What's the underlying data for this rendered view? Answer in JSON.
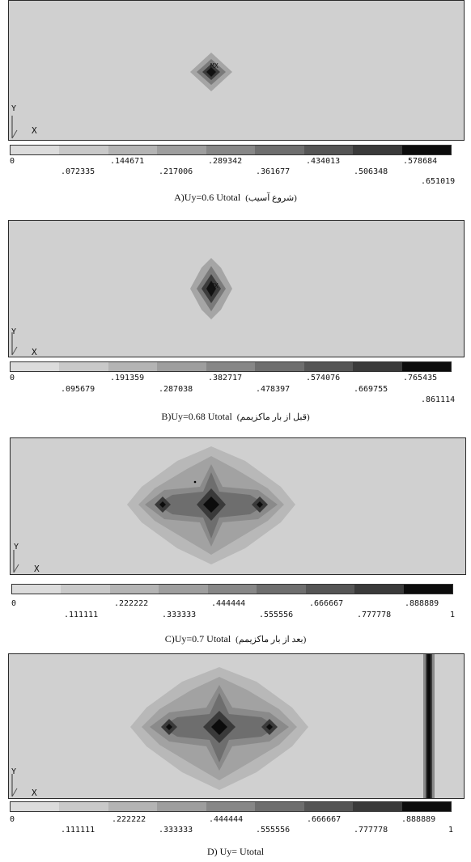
{
  "palette": [
    "#dcdcdc",
    "#c9c9c9",
    "#b4b4b4",
    "#9e9e9e",
    "#878787",
    "#6e6e6e",
    "#555555",
    "#3a3a3a",
    "#0c0c0c"
  ],
  "figures": [
    {
      "id": "A",
      "axis_y": "Y",
      "axis_x": "X",
      "node_mark": "MX",
      "damage_level": 0.651019,
      "ticks_upper": [
        "0",
        ".144671",
        ".289342",
        ".434013",
        ".578684"
      ],
      "ticks_lower": [
        ".072335",
        ".217006",
        ".361677",
        ".506348",
        ".651019"
      ],
      "caption_main": "A)Uy=0.6 Utotal",
      "caption_fa": "(شروع آسیب)"
    },
    {
      "id": "B",
      "axis_y": "Y",
      "axis_x": "X",
      "node_mark": "MX",
      "damage_level": 0.861114,
      "ticks_upper": [
        "0",
        ".191359",
        ".382717",
        ".574076",
        ".765435"
      ],
      "ticks_lower": [
        ".095679",
        ".287038",
        ".478397",
        ".669755",
        ".861114"
      ],
      "caption_main": "B)Uy=0.68 Utotal",
      "caption_fa": "(قبل از بار ماکزیمم)"
    },
    {
      "id": "C",
      "axis_y": "Y",
      "axis_x": "X",
      "node_mark": "",
      "damage_level": 1,
      "ticks_upper": [
        "0",
        ".222222",
        ".444444",
        ".666667",
        ".888889"
      ],
      "ticks_lower": [
        ".111111",
        ".333333",
        ".555556",
        ".777778",
        "1"
      ],
      "caption_main": "C)Uy=0.7 Utotal",
      "caption_fa": "(بعد از بار ماکزیمم)"
    },
    {
      "id": "D",
      "axis_y": "Y",
      "axis_x": "X",
      "node_mark": "",
      "damage_level": 1,
      "ticks_upper": [
        "0",
        ".222222",
        ".444444",
        ".666667",
        ".888889"
      ],
      "ticks_lower": [
        ".111111",
        ".333333",
        ".555556",
        ".777778",
        "1"
      ],
      "caption_main": "D) Uy= Utotal",
      "caption_fa": ""
    }
  ]
}
